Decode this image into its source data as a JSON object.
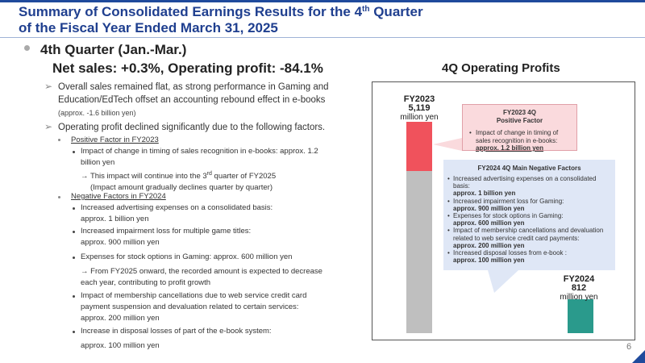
{
  "header": {
    "title_line1": "Summary of Consolidated Earnings Results for the 4",
    "title_sup": "th",
    "title_line1_end": " Quarter",
    "title_line2": "of the Fiscal Year Ended March 31, 2025"
  },
  "page_number": "6",
  "summary": {
    "heading": "4th Quarter (Jan.-Mar.)",
    "headline": "Net sales: +0.3%, Operating profit: -84.1%",
    "point1_line1": "Overall sales remained flat, as strong performance in Gaming and",
    "point1_line2": "Education/EdTech offset an accounting rebound effect in e-books",
    "point1_note": "(approx. -1.6 billion yen)",
    "point2": "Operating profit declined significantly due to the following factors.",
    "positive_heading": "Positive Factor in FY2023",
    "positive_item_line1": "Impact of change in timing of sales recognition in e-books: approx. 1.2",
    "positive_item_line2": "billion yen",
    "positive_note_line1_a": "→ This impact will continue into the 3",
    "positive_note_sup": "rd",
    "positive_note_line1_b": " quarter of FY2025",
    "positive_note_line2": "(Impact amount gradually declines quarter by quarter)",
    "negative_heading": "Negative Factors in FY2024",
    "neg1_line1": "Increased advertising expenses on a consolidated basis:",
    "neg1_line2": "approx. 1 billion yen",
    "neg2_line1": "Increased impairment loss for multiple game titles:",
    "neg2_line2": "approx. 900 million yen",
    "neg3_line1": "Expenses for stock options in Gaming: approx. 600 million yen",
    "neg3_note_line1": "→ From FY2025 onward, the recorded amount is expected to decrease",
    "neg3_note_line2": "each year, contributing to profit growth",
    "neg4_line1": "Impact of membership cancellations due to web service credit card",
    "neg4_line2": "payment suspension and devaluation related to certain services:",
    "neg4_line3": "approx. 200 million yen",
    "neg5_line1": "Increase in disposal losses of part of the e-book system:",
    "neg5_line2": "approx. 100 million yen"
  },
  "chart_data": {
    "type": "bar",
    "title": "4Q Operating Profits",
    "categories": [
      "FY2023",
      "FY2024"
    ],
    "values": [
      5119,
      812
    ],
    "value_labels": [
      "5,119",
      "812"
    ],
    "unit": "million yen",
    "fy2023_composition": {
      "base_part": 3919,
      "positive_factor_part": 1200
    },
    "colors": {
      "fy2023_base": "#bfbfbf",
      "fy2023_positive": "#f0525c",
      "fy2024": "#2a9a8c"
    }
  },
  "positive_box": {
    "title_line1": "FY2023 4Q",
    "title_line2": "Positive Factor",
    "item_line1": "Impact of change in timing of",
    "item_line2": "sales recognition in e-books:",
    "item_line3": "approx. 1.2 billion yen"
  },
  "negative_box": {
    "title": "FY2024 4Q Main Negative Factors",
    "i1_line1": "Increased advertising expenses on a consolidated",
    "i1_line2": "basis:",
    "i1_amount": "approx. 1 billion yen",
    "i2_line1": "Increased impairment loss for Gaming:",
    "i2_amount": "approx. 900 million yen",
    "i3_line1": "Expenses for stock options in Gaming:",
    "i3_amount": "approx. 600 million yen",
    "i4_line1": "Impact of membership cancellations and devaluation",
    "i4_line2": "related to web service credit card payments:",
    "i4_amount": "approx. 200 million yen",
    "i5_line1": "Increased disposal losses from e-book :",
    "i5_amount": "approx. 100 million yen"
  }
}
